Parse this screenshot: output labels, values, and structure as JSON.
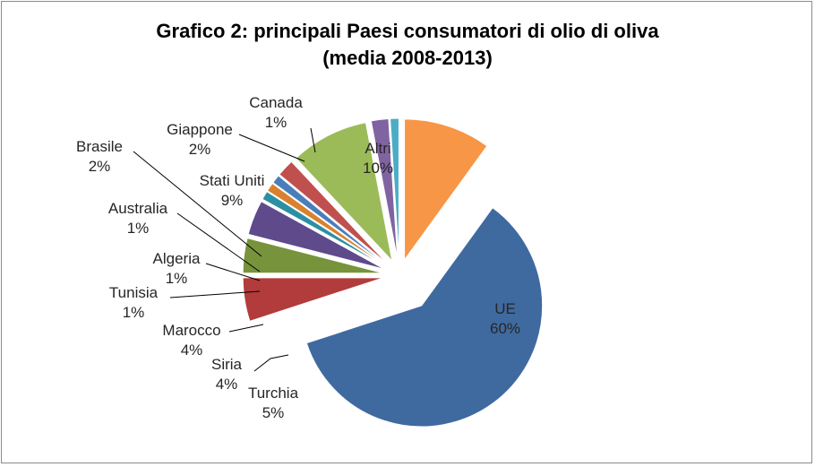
{
  "chart_data": {
    "type": "pie",
    "title_line1": "Grafico 2: principali Paesi consumatori di olio di oliva",
    "title_line2": "(media 2008-2013)",
    "slices": [
      {
        "name": "UE",
        "value": 60,
        "pct": "60%",
        "color": "#3f6aa0"
      },
      {
        "name": "Turchia",
        "value": 5,
        "pct": "5%",
        "color": "#b23b3b"
      },
      {
        "name": "Siria",
        "value": 4,
        "pct": "4%",
        "color": "#77933c"
      },
      {
        "name": "Marocco",
        "value": 4,
        "pct": "4%",
        "color": "#5f4a8b"
      },
      {
        "name": "Tunisia",
        "value": 1,
        "pct": "1%",
        "color": "#2c8fa3"
      },
      {
        "name": "Algeria",
        "value": 1,
        "pct": "1%",
        "color": "#d9812f"
      },
      {
        "name": "Australia",
        "value": 1,
        "pct": "1%",
        "color": "#4a7ebb"
      },
      {
        "name": "Brasile",
        "value": 2,
        "pct": "2%",
        "color": "#c0504d"
      },
      {
        "name": "Stati Uniti",
        "value": 9,
        "pct": "9%",
        "color": "#9bbb59"
      },
      {
        "name": "Giappone",
        "value": 2,
        "pct": "2%",
        "color": "#8064a2"
      },
      {
        "name": "Canada",
        "value": 1,
        "pct": "1%",
        "color": "#4bacc6"
      },
      {
        "name": "Altri",
        "value": 10,
        "pct": "10%",
        "color": "#f79646"
      }
    ]
  }
}
